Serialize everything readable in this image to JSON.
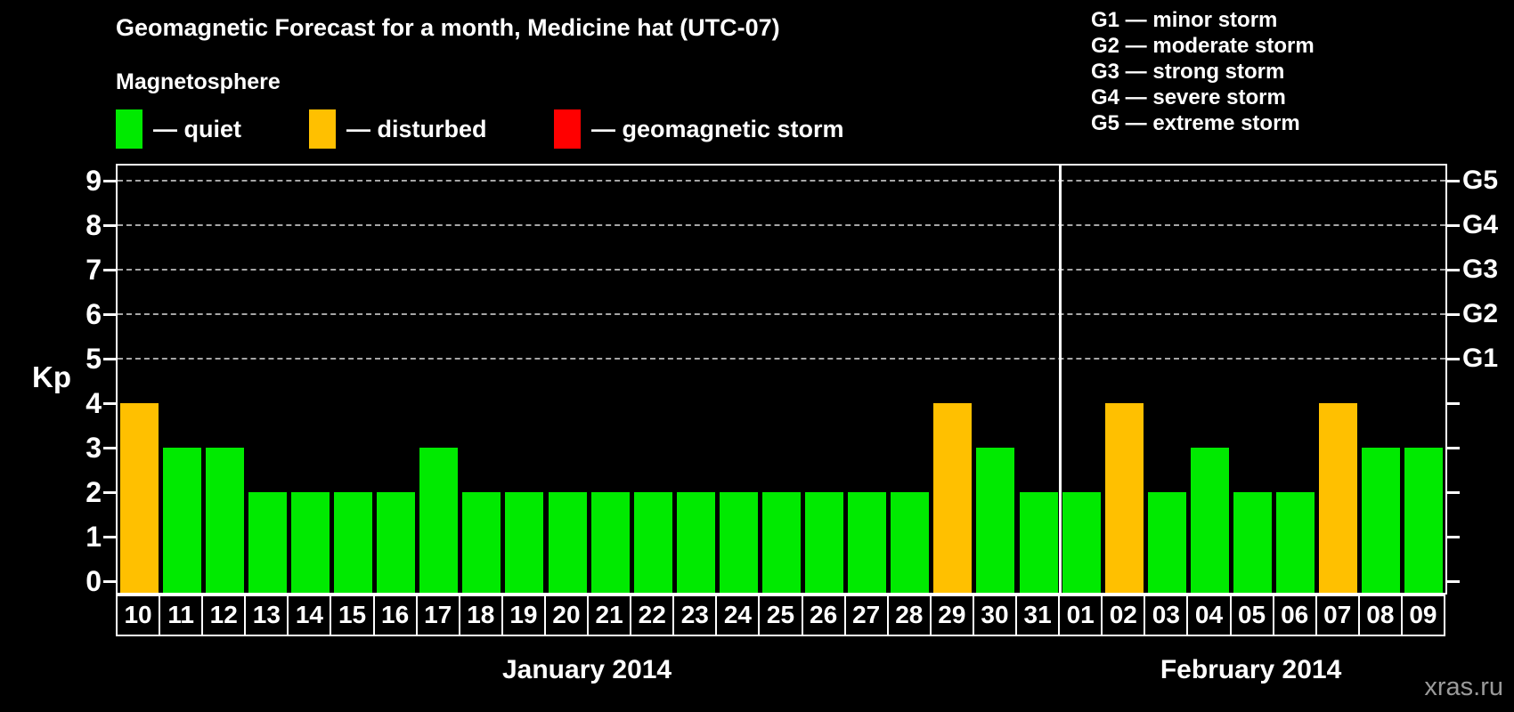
{
  "watermark": "xras.ru",
  "chart_data": {
    "type": "bar",
    "title": "Geomagnetic Forecast for a month, Medicine hat (UTC-07)",
    "subtitle": "Magnetosphere",
    "ylabel": "Kp",
    "ylim": [
      0,
      9.6
    ],
    "y_ticks": [
      0,
      1,
      2,
      3,
      4,
      5,
      6,
      7,
      8,
      9
    ],
    "gridlines_at": [
      5,
      6,
      7,
      8,
      9
    ],
    "grid": "dashed horizontal at storm levels only",
    "legend_position": "top-left",
    "legend": [
      {
        "name": "quiet",
        "label": "— quiet",
        "color": "#00ea00"
      },
      {
        "name": "disturbed",
        "label": "— disturbed",
        "color": "#ffc000"
      },
      {
        "name": "storm",
        "label": "— geomagnetic storm",
        "color": "#ff0000"
      }
    ],
    "g_legend": [
      "G1 — minor storm",
      "G2 — moderate storm",
      "G3 — strong storm",
      "G4 — severe storm",
      "G5 — extreme storm"
    ],
    "right_axis": [
      {
        "label": "G1",
        "kp": 5
      },
      {
        "label": "G2",
        "kp": 6
      },
      {
        "label": "G3",
        "kp": 7
      },
      {
        "label": "G4",
        "kp": 8
      },
      {
        "label": "G5",
        "kp": 9
      }
    ],
    "categories": [
      "10",
      "11",
      "12",
      "13",
      "14",
      "15",
      "16",
      "17",
      "18",
      "19",
      "20",
      "21",
      "22",
      "23",
      "24",
      "25",
      "26",
      "27",
      "28",
      "29",
      "30",
      "31",
      "01",
      "02",
      "03",
      "04",
      "05",
      "06",
      "07",
      "08",
      "09"
    ],
    "values": [
      4,
      3,
      3,
      2,
      2,
      2,
      2,
      3,
      2,
      2,
      2,
      2,
      2,
      2,
      2,
      2,
      2,
      2,
      2,
      4,
      3,
      2,
      2,
      4,
      2,
      3,
      2,
      2,
      4,
      3,
      3
    ],
    "statuses": [
      "disturbed",
      "quiet",
      "quiet",
      "quiet",
      "quiet",
      "quiet",
      "quiet",
      "quiet",
      "quiet",
      "quiet",
      "quiet",
      "quiet",
      "quiet",
      "quiet",
      "quiet",
      "quiet",
      "quiet",
      "quiet",
      "quiet",
      "disturbed",
      "quiet",
      "quiet",
      "quiet",
      "disturbed",
      "quiet",
      "quiet",
      "quiet",
      "quiet",
      "disturbed",
      "quiet",
      "quiet"
    ],
    "months": [
      {
        "label": "January 2014",
        "days": 22
      },
      {
        "label": "February 2014",
        "days": 9
      }
    ],
    "axis_color": "#ffffff",
    "gridline_color": "#a6a6a6",
    "background_color": "#000000"
  }
}
